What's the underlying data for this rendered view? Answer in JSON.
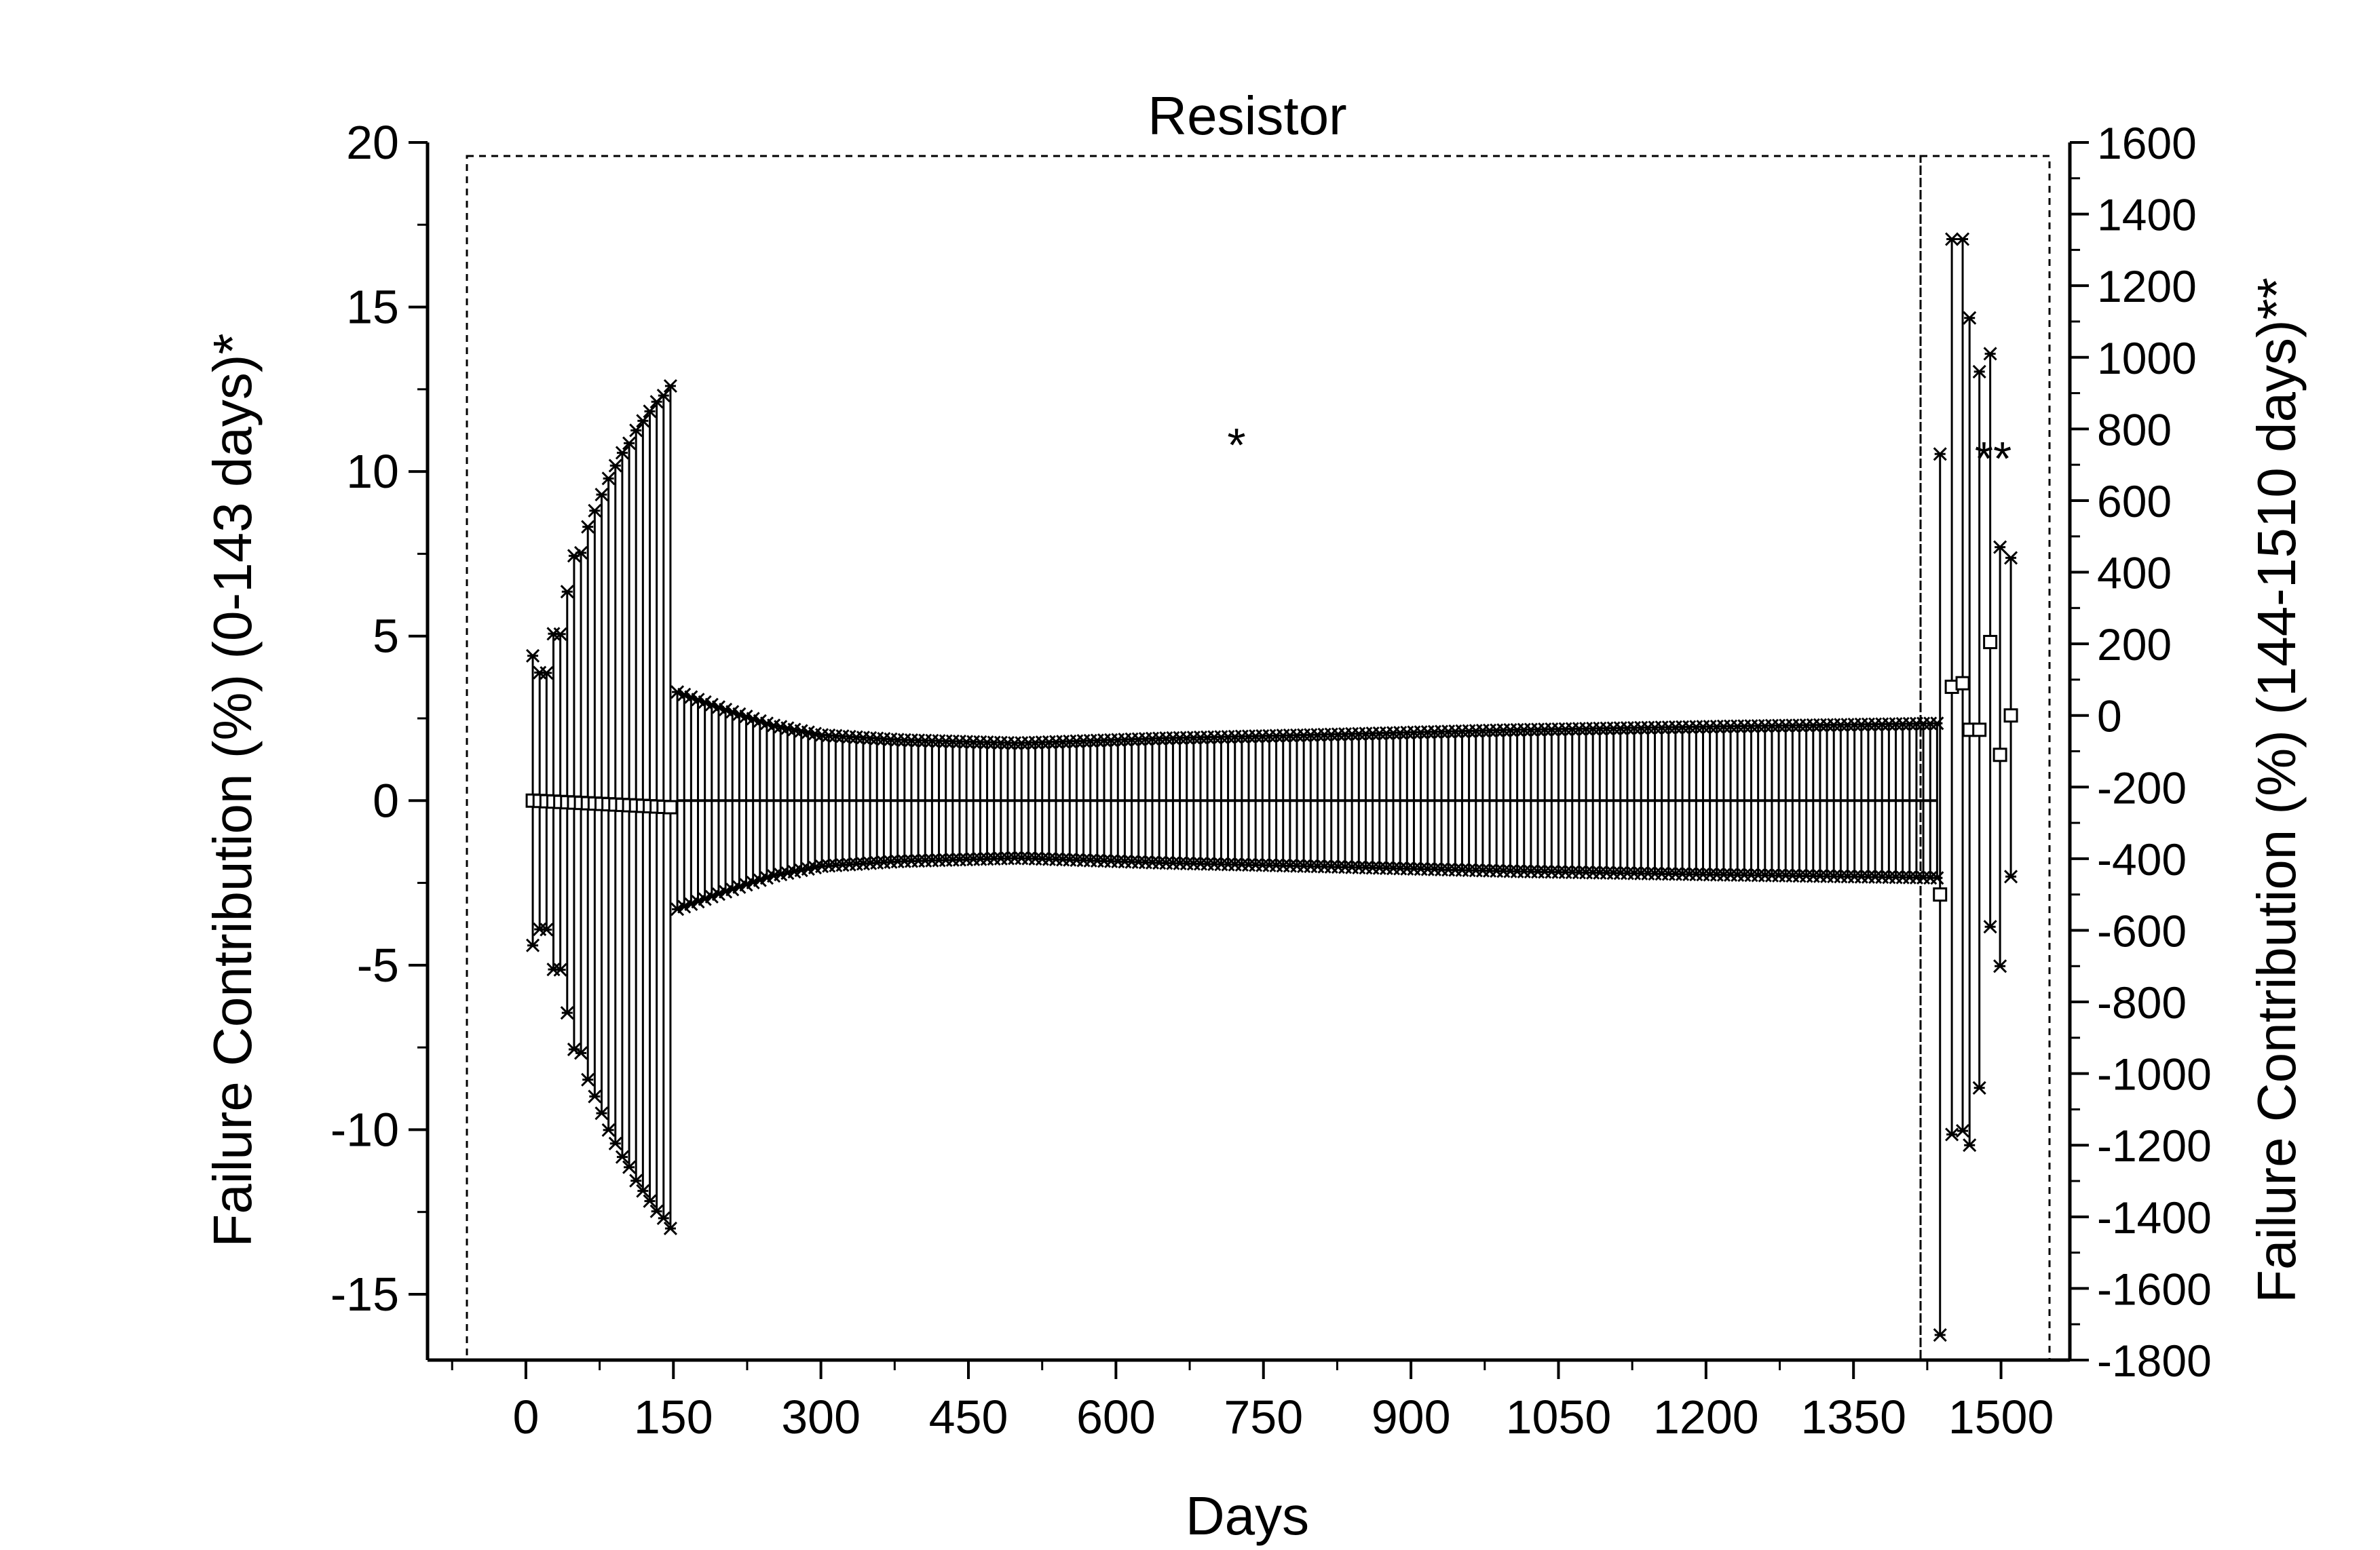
{
  "chart_data": {
    "type": "scatter",
    "title": "Resistor",
    "xlabel": "Days",
    "ylabel_left": "Failure Contribution (%) (0-143 days)*",
    "ylabel_right": "Failure Contribution (%) (144-1510 days)**",
    "annotation_left": "*",
    "annotation_right": "**",
    "xlim": [
      -100,
      1570
    ],
    "ylim_left": [
      -17,
      20
    ],
    "ylim_right": [
      -1800,
      1600
    ],
    "x_ticks": [
      "0",
      "150",
      "300",
      "450",
      "600",
      "750",
      "900",
      "1050",
      "1200",
      "1350",
      "1500"
    ],
    "y_left_ticks": [
      "-15",
      "-10",
      "-5",
      "0",
      "5",
      "10",
      "15",
      "20"
    ],
    "y_right_ticks": [
      "-1800",
      "-1600",
      "-1400",
      "-1200",
      "-1000",
      "-800",
      "-600",
      "-400",
      "-200",
      "0",
      "200",
      "400",
      "600",
      "800",
      "1000",
      "1200",
      "1400",
      "1600"
    ],
    "series": [
      {
        "axis": "left",
        "marker": "square",
        "points": [
          {
            "x": 7,
            "y": 0.0,
            "err": 4.4
          },
          {
            "x": 14,
            "y": -0.01,
            "err": 3.9
          },
          {
            "x": 21,
            "y": -0.02,
            "err": 3.9
          },
          {
            "x": 28,
            "y": -0.03,
            "err": 5.1
          },
          {
            "x": 35,
            "y": -0.04,
            "err": 5.1
          },
          {
            "x": 42,
            "y": -0.05,
            "err": 6.4
          },
          {
            "x": 49,
            "y": -0.06,
            "err": 7.5
          },
          {
            "x": 56,
            "y": -0.07,
            "err": 7.6
          },
          {
            "x": 63,
            "y": -0.08,
            "err": 8.4
          },
          {
            "x": 70,
            "y": -0.09,
            "err": 8.9
          },
          {
            "x": 77,
            "y": -0.1,
            "err": 9.4
          },
          {
            "x": 84,
            "y": -0.11,
            "err": 9.9
          },
          {
            "x": 91,
            "y": -0.12,
            "err": 10.3
          },
          {
            "x": 98,
            "y": -0.13,
            "err": 10.7
          },
          {
            "x": 105,
            "y": -0.14,
            "err": 11.0
          },
          {
            "x": 112,
            "y": -0.15,
            "err": 11.4
          },
          {
            "x": 119,
            "y": -0.16,
            "err": 11.7
          },
          {
            "x": 126,
            "y": -0.17,
            "err": 12.0
          },
          {
            "x": 133,
            "y": -0.18,
            "err": 12.3
          },
          {
            "x": 140,
            "y": -0.19,
            "err": 12.5
          },
          {
            "x": 147,
            "y": -0.2,
            "err": 12.8
          }
        ]
      },
      {
        "axis": "left",
        "marker": "square",
        "band": {
          "x_start": 154,
          "x_end": 1435,
          "step": 7,
          "y": 0.0,
          "err_profile": [
            [
              154,
              3.3
            ],
            [
              200,
              2.8
            ],
            [
              250,
              2.3
            ],
            [
              300,
              2.0
            ],
            [
              380,
              1.85
            ],
            [
              500,
              1.75
            ],
            [
              650,
              1.9
            ],
            [
              800,
              2.0
            ],
            [
              1000,
              2.15
            ],
            [
              1200,
              2.25
            ],
            [
              1435,
              2.35
            ]
          ]
        }
      },
      {
        "axis": "right",
        "marker": "square",
        "points": [
          {
            "x": 1438,
            "y": -500,
            "lo": -1730,
            "hi": 730
          },
          {
            "x": 1450,
            "y": 80,
            "lo": -1170,
            "hi": 1330
          },
          {
            "x": 1461,
            "y": 90,
            "lo": -1160,
            "hi": 1330
          },
          {
            "x": 1468,
            "y": -40,
            "lo": -1200,
            "hi": 1110
          },
          {
            "x": 1478,
            "y": -40,
            "lo": -1040,
            "hi": 960
          },
          {
            "x": 1489,
            "y": 205,
            "lo": -590,
            "hi": 1010
          },
          {
            "x": 1499,
            "y": -110,
            "lo": -700,
            "hi": 470
          },
          {
            "x": 1510,
            "y": 0,
            "lo": -450,
            "hi": 440
          }
        ]
      }
    ]
  }
}
